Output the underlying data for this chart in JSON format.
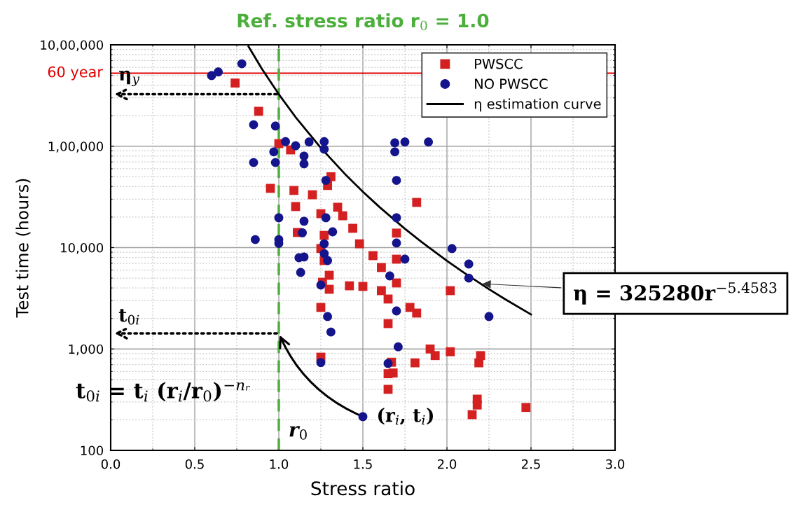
{
  "chart_data": {
    "type": "scatter",
    "title": "Ref. stress ratio r$_{0}$ = 1.0",
    "xlabel": "Stress ratio",
    "ylabel": "Test time (hours)",
    "log": "y",
    "grid": true,
    "legend": "top right",
    "xlim": [
      0,
      3
    ],
    "xticks": [
      {
        "value": 0,
        "label": "0.0"
      },
      0.5,
      {
        "value": 1,
        "label": "1.0"
      },
      1.5,
      {
        "value": 2,
        "label": "2.0"
      },
      2.5,
      {
        "value": 3,
        "label": "3.0"
      }
    ],
    "ylim": [
      100,
      1000000
    ],
    "yticks": [
      100,
      {
        "value": 1000,
        "label": "1,000"
      },
      {
        "value": 10000,
        "label": "10,000"
      },
      {
        "value": 100000,
        "label": "1,00,000"
      },
      {
        "value": 1000000,
        "label": "10,00,000"
      }
    ],
    "series": [
      {
        "name": "PWSCC",
        "marker": "square",
        "color": "#d42020",
        "x": [
          0.74,
          0.88,
          1.0,
          1.07,
          0.95,
          1.09,
          1.2,
          1.1,
          1.25,
          1.35,
          1.38,
          1.31,
          1.29,
          1.44,
          1.11,
          1.27,
          1.48,
          1.25,
          1.27,
          1.3,
          1.26,
          1.3,
          1.42,
          1.5,
          1.25,
          1.25,
          1.82,
          1.7,
          1.56,
          1.7,
          1.61,
          1.7,
          1.61,
          1.65,
          2.02,
          1.78,
          1.82,
          1.65,
          1.9,
          1.93,
          2.02,
          2.2,
          2.19,
          1.81,
          1.67,
          1.65,
          1.68,
          1.65,
          2.18,
          2.18,
          2.15,
          2.47
        ],
        "values": [
          420000,
          221000,
          106000,
          92000,
          38400,
          36600,
          33200,
          25400,
          21600,
          25000,
          20600,
          50000,
          41000,
          15500,
          14100,
          13200,
          10900,
          9800,
          7450,
          5330,
          4550,
          3880,
          4200,
          4140,
          2570,
          830,
          27900,
          13900,
          8330,
          7690,
          6360,
          4480,
          3760,
          3110,
          3760,
          2570,
          2260,
          1780,
          1000,
          860,
          940,
          860,
          730,
          730,
          740,
          570,
          580,
          400,
          320,
          280,
          225,
          265
        ]
      },
      {
        "name": "NO PWSCC",
        "marker": "circle",
        "color": "#14148c",
        "x": [
          0.78,
          0.6,
          0.64,
          0.85,
          0.98,
          1.04,
          1.1,
          1.18,
          1.27,
          1.27,
          0.97,
          1.15,
          1.15,
          0.85,
          0.98,
          1.28,
          1.0,
          1.15,
          1.28,
          1.32,
          1.14,
          0.86,
          1.0,
          1.0,
          1.27,
          1.12,
          1.15,
          1.27,
          1.29,
          1.13,
          1.25,
          1.29,
          1.31,
          1.25,
          1.5,
          1.69,
          1.69,
          1.75,
          1.89,
          1.7,
          1.7,
          1.7,
          2.03,
          1.75,
          2.13,
          2.13,
          1.66,
          2.25,
          1.7,
          1.71,
          1.65
        ],
        "values": [
          650000,
          497000,
          540000,
          163000,
          158000,
          111000,
          101000,
          110000,
          111000,
          93500,
          88000,
          80000,
          67000,
          69000,
          69000,
          46000,
          19700,
          18200,
          19700,
          14300,
          14000,
          12000,
          12000,
          11000,
          10900,
          7940,
          8080,
          8730,
          7450,
          5690,
          4270,
          2090,
          1470,
          735,
          215,
          108000,
          88000,
          110000,
          110000,
          46000,
          19700,
          11100,
          9770,
          7690,
          6880,
          5000,
          5250,
          2090,
          2370,
          1050,
          720
        ]
      },
      {
        "name": "η estimation curve",
        "type": "line",
        "color": "#000000",
        "line_style": "solid",
        "marker": "none",
        "x": [
          0.82,
          0.9,
          1.0,
          1.1,
          1.25,
          1.4,
          1.5,
          1.6,
          1.75,
          1.85,
          2.0,
          2.1,
          2.25,
          2.35,
          2.5
        ],
        "values": [
          961000,
          578200,
          325280,
          193350,
          96250,
          51820,
          35580,
          25010,
          15330,
          11320,
          7400,
          5670,
          3890,
          3068,
          2190
        ]
      }
    ],
    "ref_lines": [
      {
        "axis": "y",
        "value": 525600,
        "label": "60 year",
        "color": "#e00000",
        "line_style": "solid"
      },
      {
        "axis": "x",
        "value": 1.0,
        "label": "r$_{0}$",
        "color": "#4caf3c",
        "line_style": "dashed"
      }
    ],
    "annotations": [
      {
        "text": "η$_{y}$",
        "x": 1.0,
        "y": 325280
      },
      {
        "text": "t$_{0i}$",
        "x": 1.0,
        "y": 1425
      },
      {
        "text": "(r$_{i}$, t$_{i}$)",
        "x": 1.5,
        "y": 215
      },
      {
        "text": "η = 325280r$^{−5.4583}$",
        "x": 2.2,
        "y": 4400
      },
      "t$_{0i}$ = t$_{i}$ (r$_{i}$/r$_{0}$)$^{−nᵣ}$"
    ]
  }
}
